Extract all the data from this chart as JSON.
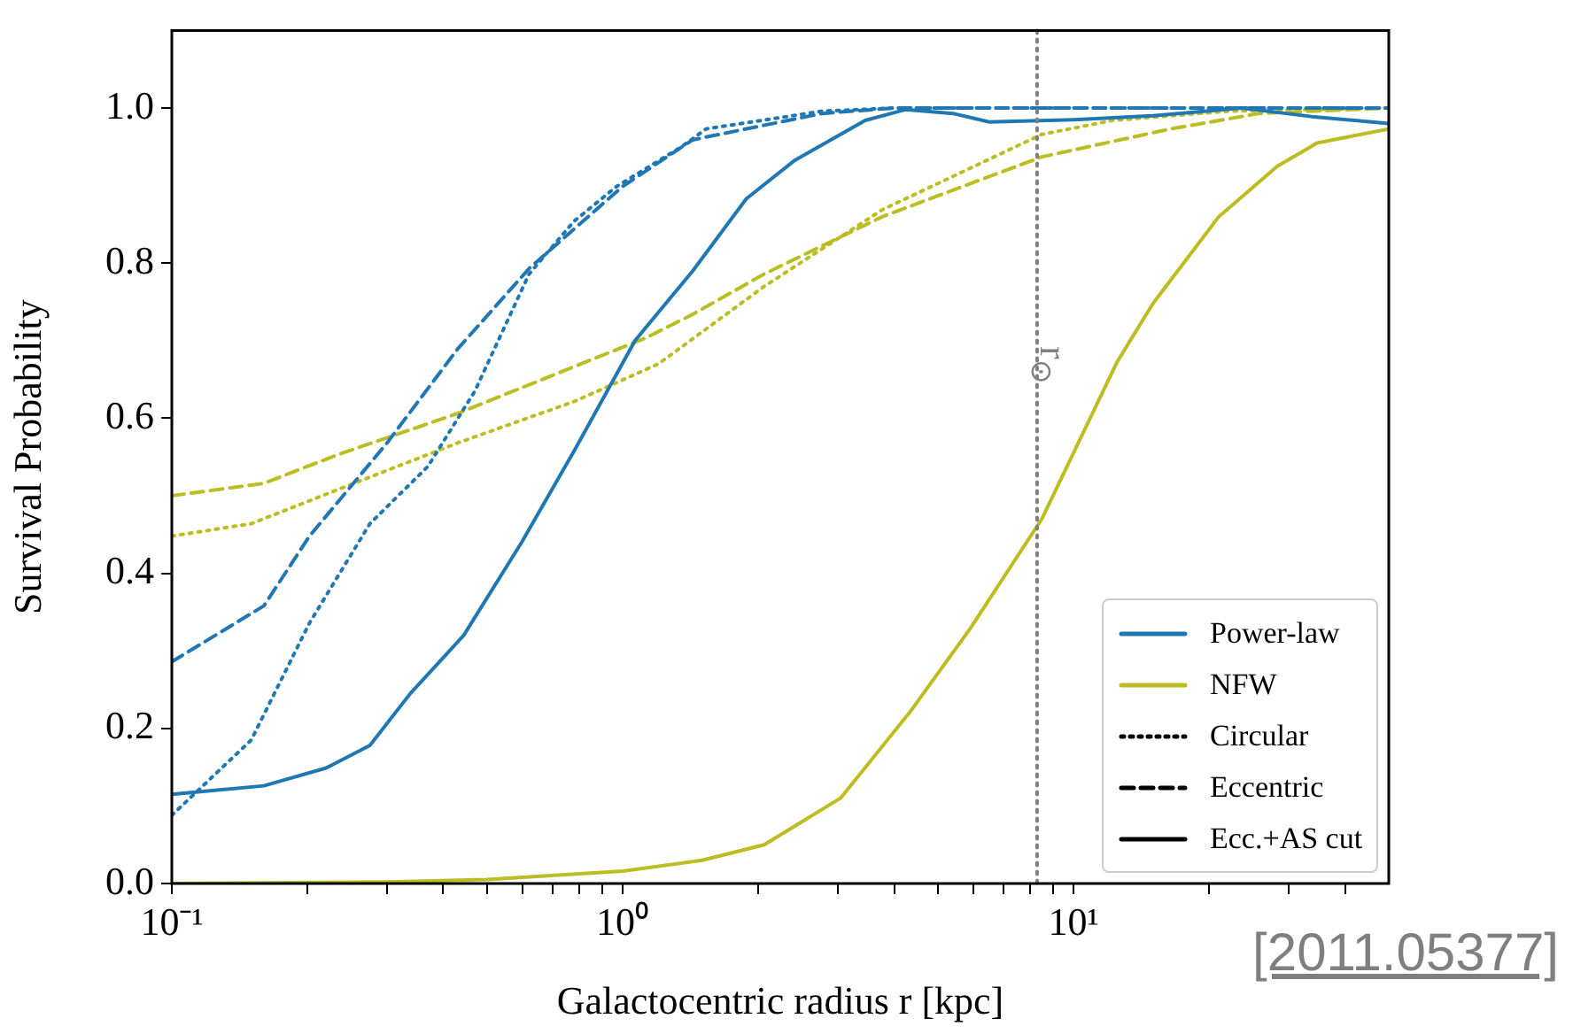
{
  "chart_data": {
    "type": "line",
    "xlabel": "Galactocentric radius r [kpc]",
    "ylabel": "Survival Probability",
    "log": "x",
    "grid": false,
    "legend": "bottom right",
    "marker": "none",
    "xlim": [
      0.1,
      50
    ],
    "ylim": [
      0,
      1.1
    ],
    "xticks": [
      {
        "value": 0.1,
        "label": "10⁻¹"
      },
      {
        "value": 0.2,
        "label": null
      },
      {
        "value": 0.3,
        "label": null
      },
      {
        "value": 0.4,
        "label": null
      },
      {
        "value": 0.5,
        "label": null
      },
      {
        "value": 0.6,
        "label": null
      },
      {
        "value": 0.7,
        "label": null
      },
      {
        "value": 0.8,
        "label": null
      },
      {
        "value": 0.9,
        "label": null
      },
      {
        "value": 1,
        "label": "10⁰"
      },
      {
        "value": 2,
        "label": null
      },
      {
        "value": 3,
        "label": null
      },
      {
        "value": 4,
        "label": null
      },
      {
        "value": 5,
        "label": null
      },
      {
        "value": 6,
        "label": null
      },
      {
        "value": 7,
        "label": null
      },
      {
        "value": 8,
        "label": null
      },
      {
        "value": 9,
        "label": null
      },
      {
        "value": 10,
        "label": "10¹"
      },
      {
        "value": 20,
        "label": null
      },
      {
        "value": 30,
        "label": null
      },
      {
        "value": 40,
        "label": null
      }
    ],
    "yticks": [
      {
        "value": 0,
        "label": "0.0"
      },
      {
        "value": 0.2,
        "label": "0.2"
      },
      {
        "value": 0.4,
        "label": "0.4"
      },
      {
        "value": 0.6,
        "label": "0.6"
      },
      {
        "value": 0.8,
        "label": "0.8"
      },
      {
        "value": 1,
        "label": "1.0"
      }
    ],
    "series": [
      {
        "name": "Power-law",
        "color": "#1f77b4",
        "line_style": "solid",
        "x": [
          0.1,
          0.16,
          0.22,
          0.275,
          0.338,
          0.444,
          0.597,
          0.784,
          1.065,
          1.43,
          1.88,
          2.4,
          3.45,
          4.24,
          5.4,
          6.5,
          10,
          15,
          23.6,
          33.7,
          50
        ],
        "values": [
          0.115,
          0.126,
          0.149,
          0.178,
          0.245,
          0.32,
          0.44,
          0.56,
          0.7,
          0.79,
          0.883,
          0.932,
          0.984,
          0.998,
          0.993,
          0.982,
          0.985,
          0.99,
          1.0,
          0.989,
          0.98
        ]
      },
      {
        "name": "NFW",
        "color": "#bcbd22",
        "line_style": "solid",
        "x": [
          0.1,
          0.3,
          0.5,
          1,
          1.5,
          2.06,
          3.04,
          4.36,
          5.9,
          8.5,
          12.5,
          15,
          21,
          28.3,
          34.7,
          50
        ],
        "values": [
          0.0,
          0.002,
          0.005,
          0.016,
          0.03,
          0.05,
          0.11,
          0.223,
          0.329,
          0.47,
          0.673,
          0.748,
          0.86,
          0.925,
          0.955,
          0.973
        ]
      },
      {
        "color": "#1f77b4",
        "line_style": "dotted",
        "x": [
          0.1,
          0.15,
          0.202,
          0.275,
          0.37,
          0.47,
          0.62,
          0.78,
          0.97,
          1.35,
          1.53,
          2.77,
          4,
          50
        ],
        "values": [
          0.088,
          0.185,
          0.336,
          0.464,
          0.538,
          0.635,
          0.786,
          0.854,
          0.899,
          0.95,
          0.973,
          0.996,
          1.0,
          1.0
        ]
      },
      {
        "color": "#1f77b4",
        "line_style": "dashed",
        "x": [
          0.1,
          0.16,
          0.202,
          0.3,
          0.43,
          0.62,
          1.0,
          1.43,
          2.77,
          4,
          50
        ],
        "values": [
          0.286,
          0.358,
          0.448,
          0.568,
          0.689,
          0.793,
          0.899,
          0.959,
          0.993,
          1.0,
          1.0
        ]
      },
      {
        "color": "#bcbd22",
        "line_style": "dotted",
        "x": [
          0.1,
          0.15,
          0.236,
          0.43,
          0.784,
          1.2,
          2.06,
          3.77,
          8.5,
          12.2,
          22.2,
          50
        ],
        "values": [
          0.448,
          0.464,
          0.509,
          0.568,
          0.622,
          0.67,
          0.77,
          0.869,
          0.966,
          0.984,
          0.996,
          1.0
        ]
      },
      {
        "color": "#bcbd22",
        "line_style": "dashed",
        "x": [
          0.1,
          0.16,
          0.236,
          0.43,
          0.784,
          1.12,
          1.43,
          2.06,
          3.77,
          8.5,
          16.4,
          25.8,
          50
        ],
        "values": [
          0.5,
          0.516,
          0.554,
          0.606,
          0.667,
          0.703,
          0.734,
          0.786,
          0.86,
          0.937,
          0.973,
          0.993,
          1.0
        ]
      },
      {
        "name": "Circular",
        "color": "#000000",
        "line_style": "dotted"
      },
      {
        "name": "Eccentric",
        "color": "#000000",
        "line_style": "dashed"
      },
      {
        "name": "Ecc.+AS cut",
        "color": "#000000",
        "line_style": "solid"
      }
    ],
    "ref_lines": [
      {
        "axis": "x",
        "value": 8.3,
        "label": "r$_{⊙}$",
        "color": "#808080",
        "line_style": "dotted"
      }
    ],
    "annotations": [
      "[2011.05377]"
    ]
  }
}
